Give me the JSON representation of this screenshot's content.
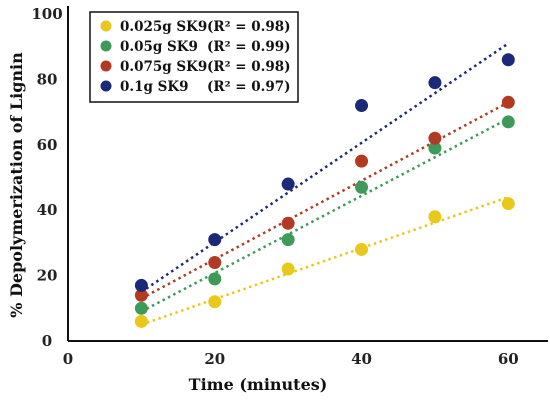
{
  "chart_data": {
    "type": "scatter",
    "xlabel": "Time (minutes)",
    "ylabel": "% Depolymerization of Lignin",
    "xlim": [
      0,
      65
    ],
    "ylim": [
      0,
      100
    ],
    "xticks": [
      "0",
      "20",
      "40",
      "60"
    ],
    "yticks": [
      "0",
      "20",
      "40",
      "60",
      "80",
      "100"
    ],
    "legend_position": "top-left",
    "grid": false,
    "series": [
      {
        "name": "0.025g SK9",
        "r2": "(R² = 0.98)",
        "color": "#e8c81a",
        "x": [
          10,
          20,
          30,
          40,
          50,
          60
        ],
        "y": [
          6,
          12,
          22,
          28,
          38,
          42
        ],
        "fit": {
          "x": [
            10,
            60
          ],
          "y": [
            5,
            44
          ]
        }
      },
      {
        "name": "0.05g SK9",
        "r2": "(R² = 0.99)",
        "color": "#3f9a5a",
        "x": [
          10,
          20,
          30,
          40,
          50,
          60
        ],
        "y": [
          10,
          19,
          31,
          47,
          59,
          67
        ],
        "fit": {
          "x": [
            10,
            60
          ],
          "y": [
            9,
            68
          ]
        }
      },
      {
        "name": "0.075g SK9",
        "r2": "(R² = 0.98)",
        "color": "#b33a22",
        "x": [
          10,
          20,
          30,
          40,
          50,
          60
        ],
        "y": [
          14,
          24,
          36,
          55,
          62,
          73
        ],
        "fit": {
          "x": [
            10,
            60
          ],
          "y": [
            13,
            73
          ]
        }
      },
      {
        "name": "0.1g SK9",
        "r2": "(R² = 0.97)",
        "color": "#1a2a78",
        "x": [
          10,
          20,
          30,
          40,
          50,
          60
        ],
        "y": [
          17,
          31,
          48,
          72,
          79,
          86
        ],
        "fit": {
          "x": [
            10,
            60
          ],
          "y": [
            15,
            91
          ]
        }
      }
    ]
  }
}
